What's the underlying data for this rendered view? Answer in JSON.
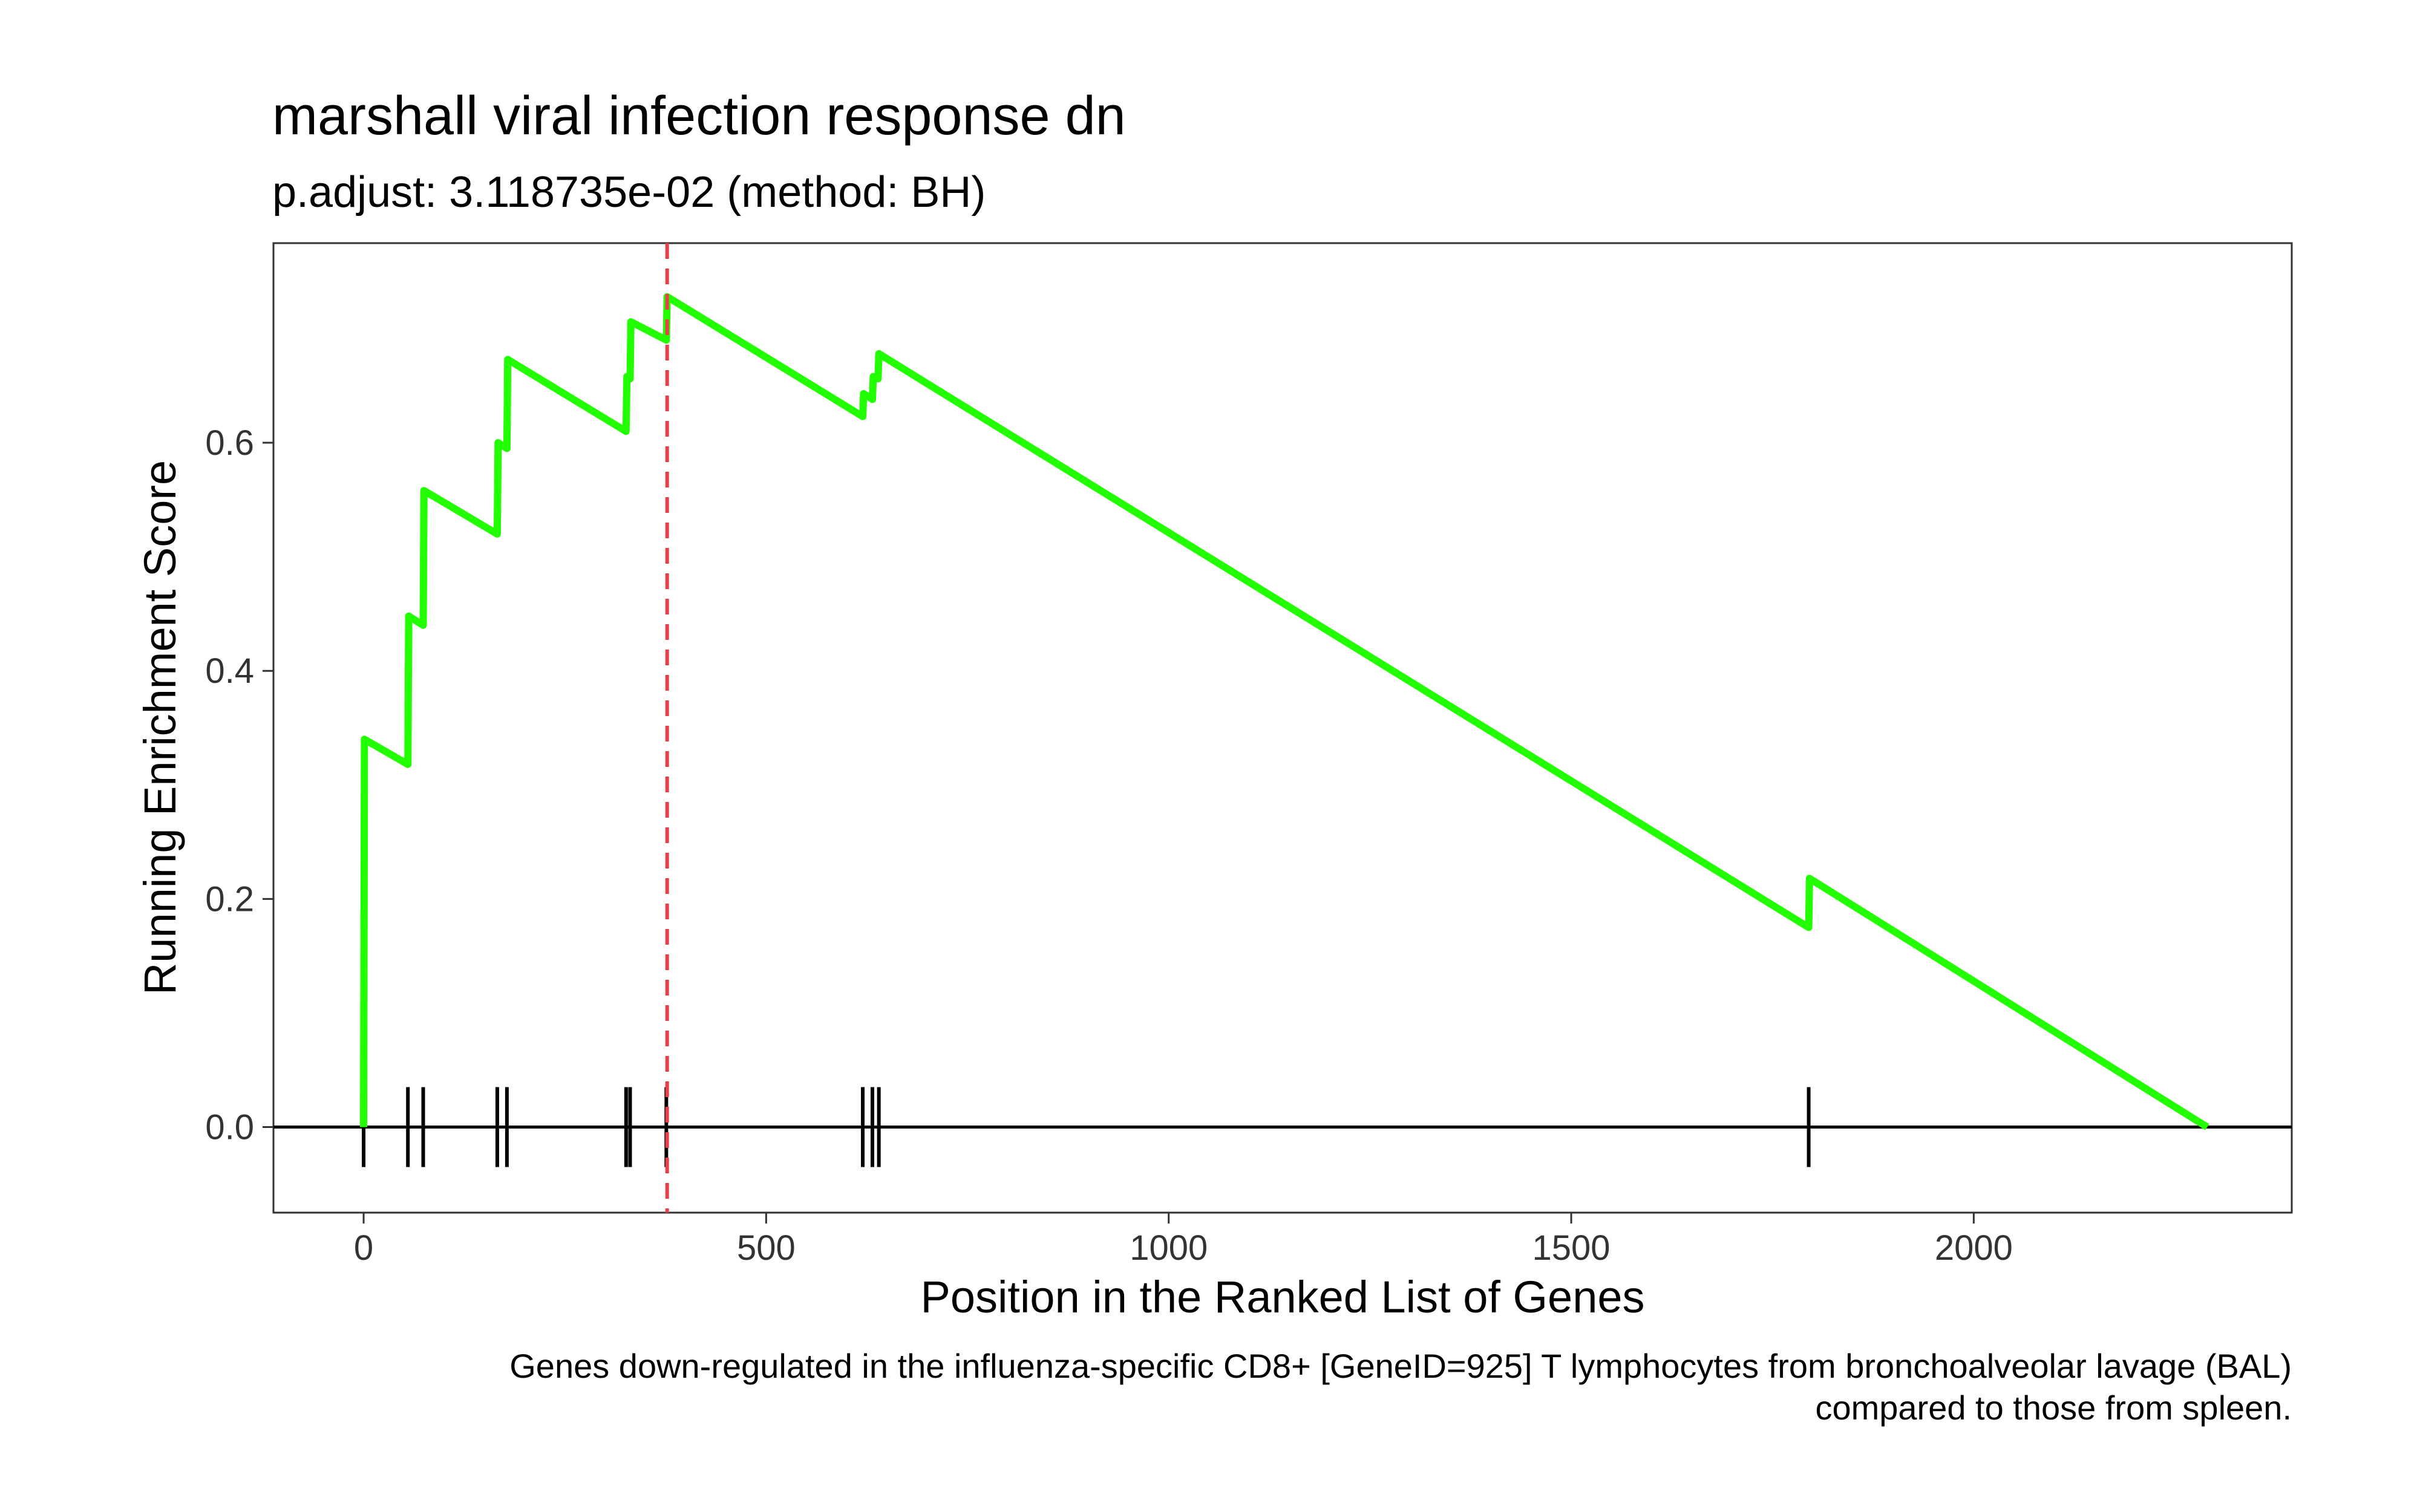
{
  "chart_data": {
    "type": "line",
    "title": "marshall viral infection response dn",
    "subtitle": "p.adjust: 3.118735e-02 (method: BH)",
    "xlabel": "Position in the Ranked List of Genes",
    "ylabel": "Running Enrichment Score",
    "caption_lines": [
      "Genes down-regulated in the influenza-specific CD8+ [GeneID=925] T lymphocytes from bronchoalveolar lavage (BAL)",
      "compared to those from spleen."
    ],
    "xlim": [
      -112,
      2395
    ],
    "ylim": [
      -0.075,
      0.775
    ],
    "x_ticks": [
      0,
      500,
      1000,
      1500,
      2000
    ],
    "y_ticks": [
      0.0,
      0.2,
      0.4,
      0.6
    ],
    "grid": false,
    "series": [
      {
        "color": "#22ff00",
        "points": [
          [
            0,
            0.0
          ],
          [
            1,
            0.34
          ],
          [
            55,
            0.318
          ],
          [
            56,
            0.448
          ],
          [
            74,
            0.44
          ],
          [
            75,
            0.558
          ],
          [
            166,
            0.52
          ],
          [
            167,
            0.6
          ],
          [
            178,
            0.595
          ],
          [
            179,
            0.673
          ],
          [
            326,
            0.61
          ],
          [
            327,
            0.658
          ],
          [
            331,
            0.656
          ],
          [
            332,
            0.706
          ],
          [
            376,
            0.69
          ],
          [
            377,
            0.728
          ],
          [
            620,
            0.623
          ],
          [
            621,
            0.643
          ],
          [
            632,
            0.638
          ],
          [
            633,
            0.658
          ],
          [
            639,
            0.656
          ],
          [
            640,
            0.678
          ],
          [
            1795,
            0.175
          ],
          [
            1796,
            0.218
          ],
          [
            2290,
            0.0
          ]
        ]
      }
    ],
    "hits": [
      0,
      55,
      74,
      166,
      178,
      326,
      331,
      376,
      620,
      632,
      640,
      1795
    ],
    "peak_line": {
      "x": 377,
      "color": "#e8404a"
    }
  }
}
